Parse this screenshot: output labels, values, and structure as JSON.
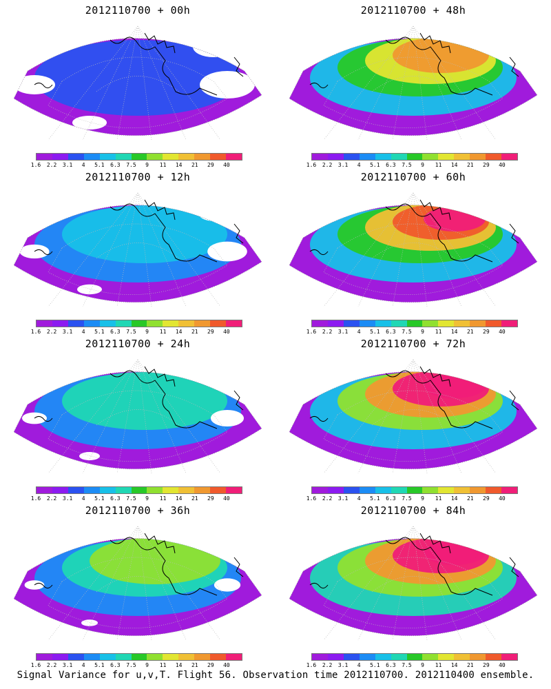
{
  "panels": [
    {
      "title": "2012110700 + 00h",
      "level": 0.0
    },
    {
      "title": "2012110700 + 48h",
      "level": 0.62
    },
    {
      "title": "2012110700 + 12h",
      "level": 0.28
    },
    {
      "title": "2012110700 + 60h",
      "level": 0.72
    },
    {
      "title": "2012110700 + 24h",
      "level": 0.4
    },
    {
      "title": "2012110700 + 72h",
      "level": 0.84
    },
    {
      "title": "2012110700 + 36h",
      "level": 0.52
    },
    {
      "title": "2012110700 + 84h",
      "level": 0.92
    }
  ],
  "colorbar": {
    "labels": [
      "1.6",
      "2.2",
      "3.1",
      "4",
      "5.1",
      "6.3",
      "7.5",
      "9",
      "11",
      "14",
      "21",
      "29",
      "40"
    ],
    "colors": [
      "#a01bdc",
      "#8c1bf0",
      "#2b52f0",
      "#1c8cf5",
      "#18c0e8",
      "#20d7b4",
      "#28c828",
      "#90e030",
      "#e2e632",
      "#f0c035",
      "#f09830",
      "#f05a2c",
      "#f01e78"
    ]
  },
  "caption": "Signal Variance for u,v,T. Flight 56. Observation time 2012110700. 2012110400 ensemble."
}
